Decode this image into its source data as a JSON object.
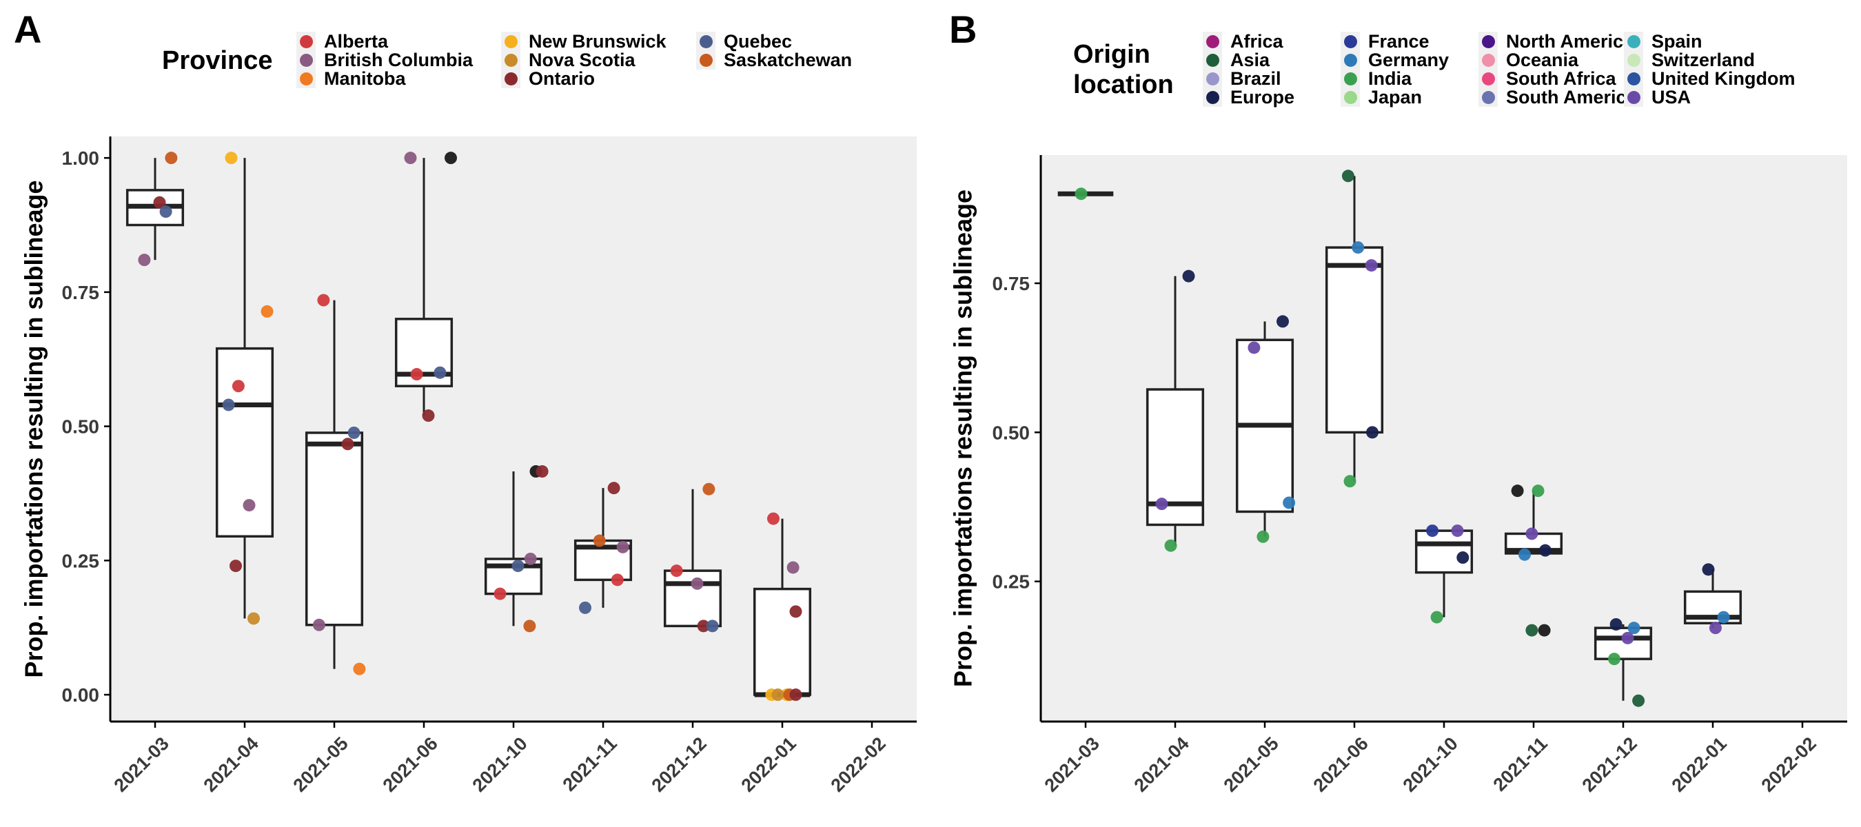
{
  "panels": [
    {
      "letter": "A",
      "legend": {
        "title": "Province",
        "items": [
          {
            "label": "Alberta",
            "color": "#d03a3e"
          },
          {
            "label": "British Columbia",
            "color": "#8a5a82"
          },
          {
            "label": "Manitoba",
            "color": "#f07a20"
          },
          {
            "label": "New Brunswick",
            "color": "#f5b01e"
          },
          {
            "label": "Nova Scotia",
            "color": "#c98a2a"
          },
          {
            "label": "Ontario",
            "color": "#8a2a2e"
          },
          {
            "label": "Quebec",
            "color": "#4a5e8e"
          },
          {
            "label": "Saskatchewan",
            "color": "#c85a1e"
          }
        ]
      },
      "chart_data": {
        "type": "boxplot",
        "ylabel": "Prop. importations resulting in sublineage",
        "categories": [
          "2021-03",
          "2021-04",
          "2021-05",
          "2021-06",
          "2021-10",
          "2021-11",
          "2021-12",
          "2022-01",
          "2022-02"
        ],
        "ylim": [
          -0.05,
          1.04
        ],
        "yticks": [
          "0.00",
          "0.25",
          "0.50",
          "0.75",
          "1.00"
        ],
        "grid": false,
        "boxes": [
          {
            "category": "2021-03",
            "q1": 0.875,
            "median": 0.91,
            "q3": 0.94,
            "lower": 0.81,
            "upper": 1.0
          },
          {
            "category": "2021-04",
            "q1": 0.295,
            "median": 0.54,
            "q3": 0.645,
            "lower": 0.142,
            "upper": 1.0
          },
          {
            "category": "2021-05",
            "q1": 0.13,
            "median": 0.467,
            "q3": 0.488,
            "lower": 0.048,
            "upper": 0.735
          },
          {
            "category": "2021-06",
            "q1": 0.575,
            "median": 0.597,
            "q3": 0.7,
            "lower": 0.52,
            "upper": 1.0
          },
          {
            "category": "2021-10",
            "q1": 0.188,
            "median": 0.24,
            "q3": 0.253,
            "lower": 0.128,
            "upper": 0.416
          },
          {
            "category": "2021-11",
            "q1": 0.214,
            "median": 0.275,
            "q3": 0.287,
            "lower": 0.162,
            "upper": 0.385
          },
          {
            "category": "2021-12",
            "q1": 0.128,
            "median": 0.207,
            "q3": 0.231,
            "lower": 0.128,
            "upper": 0.383
          },
          {
            "category": "2022-01",
            "q1": 0.0,
            "median": 0.0,
            "q3": 0.197,
            "lower": 0.0,
            "upper": 0.328
          }
        ],
        "points": [
          {
            "x": "2021-03",
            "y": 0.81,
            "group": "British Columbia"
          },
          {
            "x": "2021-03",
            "y": 0.917,
            "group": "Ontario"
          },
          {
            "x": "2021-03",
            "y": 0.9,
            "group": "Quebec"
          },
          {
            "x": "2021-03",
            "y": 1.0,
            "group": "Saskatchewan"
          },
          {
            "x": "2021-04",
            "y": 1.0,
            "group": "New Brunswick"
          },
          {
            "x": "2021-04",
            "y": 0.714,
            "group": "Manitoba"
          },
          {
            "x": "2021-04",
            "y": 0.575,
            "group": "Alberta"
          },
          {
            "x": "2021-04",
            "y": 0.54,
            "group": "Quebec"
          },
          {
            "x": "2021-04",
            "y": 0.353,
            "group": "British Columbia"
          },
          {
            "x": "2021-04",
            "y": 0.24,
            "group": "Ontario"
          },
          {
            "x": "2021-04",
            "y": 0.142,
            "group": "Nova Scotia"
          },
          {
            "x": "2021-05",
            "y": 0.735,
            "group": "Alberta"
          },
          {
            "x": "2021-05",
            "y": 0.488,
            "group": "Quebec"
          },
          {
            "x": "2021-05",
            "y": 0.467,
            "group": "Ontario"
          },
          {
            "x": "2021-05",
            "y": 0.13,
            "group": "British Columbia"
          },
          {
            "x": "2021-05",
            "y": 0.048,
            "group": "Manitoba"
          },
          {
            "x": "2021-06",
            "y": 1.0,
            "group": "British Columbia"
          },
          {
            "x": "2021-06",
            "y": 1.0
          },
          {
            "x": "2021-06",
            "y": 0.597,
            "group": "Alberta"
          },
          {
            "x": "2021-06",
            "y": 0.6,
            "group": "Quebec"
          },
          {
            "x": "2021-06",
            "y": 0.52,
            "group": "Ontario"
          },
          {
            "x": "2021-10",
            "y": 0.416
          },
          {
            "x": "2021-10",
            "y": 0.416,
            "group": "Ontario"
          },
          {
            "x": "2021-10",
            "y": 0.253,
            "group": "British Columbia"
          },
          {
            "x": "2021-10",
            "y": 0.24,
            "group": "Quebec"
          },
          {
            "x": "2021-10",
            "y": 0.188,
            "group": "Alberta"
          },
          {
            "x": "2021-10",
            "y": 0.128,
            "group": "Saskatchewan"
          },
          {
            "x": "2021-11",
            "y": 0.385,
            "group": "Ontario"
          },
          {
            "x": "2021-11",
            "y": 0.287,
            "group": "Saskatchewan"
          },
          {
            "x": "2021-11",
            "y": 0.275,
            "group": "British Columbia"
          },
          {
            "x": "2021-11",
            "y": 0.214,
            "group": "Alberta"
          },
          {
            "x": "2021-11",
            "y": 0.162,
            "group": "Quebec"
          },
          {
            "x": "2021-12",
            "y": 0.383,
            "group": "Saskatchewan"
          },
          {
            "x": "2021-12",
            "y": 0.231,
            "group": "Alberta"
          },
          {
            "x": "2021-12",
            "y": 0.207,
            "group": "British Columbia"
          },
          {
            "x": "2021-12",
            "y": 0.128,
            "group": "Ontario"
          },
          {
            "x": "2021-12",
            "y": 0.128,
            "group": "Quebec"
          },
          {
            "x": "2022-01",
            "y": 0.328,
            "group": "Alberta"
          },
          {
            "x": "2022-01",
            "y": 0.237,
            "group": "British Columbia"
          },
          {
            "x": "2022-01",
            "y": 0.155,
            "group": "Ontario"
          },
          {
            "x": "2022-01",
            "y": 0.0,
            "group": "New Brunswick"
          },
          {
            "x": "2022-01",
            "y": 0.0,
            "group": "New Brunswick"
          },
          {
            "x": "2022-01",
            "y": 0.0,
            "group": "Nova Scotia"
          },
          {
            "x": "2022-01",
            "y": 0.0,
            "group": "Saskatchewan"
          },
          {
            "x": "2022-01",
            "y": 0.0,
            "group": "Ontario"
          }
        ]
      }
    },
    {
      "letter": "B",
      "legend": {
        "title": "Origin\nlocation",
        "items": [
          {
            "label": "Africa",
            "color": "#a01c7a"
          },
          {
            "label": "Asia",
            "color": "#1e5e3a"
          },
          {
            "label": "Brazil",
            "color": "#9a96cc"
          },
          {
            "label": "Europe",
            "color": "#16204e"
          },
          {
            "label": "France",
            "color": "#2a3a96"
          },
          {
            "label": "Germany",
            "color": "#2e7ab8"
          },
          {
            "label": "India",
            "color": "#3aa050"
          },
          {
            "label": "Japan",
            "color": "#9ad88a"
          },
          {
            "label": "North America",
            "color": "#4a148a"
          },
          {
            "label": "Oceania",
            "color": "#f090a8"
          },
          {
            "label": "South Africa",
            "color": "#e8487e"
          },
          {
            "label": "South America",
            "color": "#6a72b0"
          },
          {
            "label": "Spain",
            "color": "#3ab0bc"
          },
          {
            "label": "Switzerland",
            "color": "#c8e8b8"
          },
          {
            "label": "United Kingdom",
            "color": "#2a54a0"
          },
          {
            "label": "USA",
            "color": "#6a4aa8"
          }
        ]
      },
      "chart_data": {
        "type": "boxplot",
        "ylabel": "Prop. importations resulting in sublineage",
        "categories": [
          "2021-03",
          "2021-04",
          "2021-05",
          "2021-06",
          "2021-10",
          "2021-11",
          "2021-12",
          "2022-01",
          "2022-02"
        ],
        "ylim": [
          0.015,
          0.965
        ],
        "yticks": [
          "0.25",
          "0.50",
          "0.75"
        ],
        "grid": false,
        "boxes": [
          {
            "category": "2021-03",
            "q1": 0.9,
            "median": 0.9,
            "q3": 0.9,
            "lower": 0.9,
            "upper": 0.9
          },
          {
            "category": "2021-04",
            "q1": 0.345,
            "median": 0.38,
            "q3": 0.572,
            "lower": 0.31,
            "upper": 0.762
          },
          {
            "category": "2021-05",
            "q1": 0.367,
            "median": 0.512,
            "q3": 0.655,
            "lower": 0.325,
            "upper": 0.686
          },
          {
            "category": "2021-06",
            "q1": 0.5,
            "median": 0.78,
            "q3": 0.81,
            "lower": 0.418,
            "upper": 0.93
          },
          {
            "category": "2021-10",
            "q1": 0.265,
            "median": 0.313,
            "q3": 0.335,
            "lower": 0.19,
            "upper": 0.335
          },
          {
            "category": "2021-11",
            "q1": 0.297,
            "median": 0.302,
            "q3": 0.33,
            "lower": 0.297,
            "upper": 0.402
          },
          {
            "category": "2021-12",
            "q1": 0.12,
            "median": 0.155,
            "q3": 0.172,
            "lower": 0.05,
            "upper": 0.178
          },
          {
            "category": "2022-01",
            "q1": 0.18,
            "median": 0.19,
            "q3": 0.233,
            "lower": 0.172,
            "upper": 0.27
          }
        ],
        "points": [
          {
            "x": "2021-03",
            "y": 0.9,
            "group": "India"
          },
          {
            "x": "2021-04",
            "y": 0.762,
            "group": "Europe"
          },
          {
            "x": "2021-04",
            "y": 0.38,
            "group": "USA"
          },
          {
            "x": "2021-04",
            "y": 0.31,
            "group": "India"
          },
          {
            "x": "2021-05",
            "y": 0.686,
            "group": "Europe"
          },
          {
            "x": "2021-05",
            "y": 0.642,
            "group": "USA"
          },
          {
            "x": "2021-05",
            "y": 0.382,
            "group": "Germany"
          },
          {
            "x": "2021-05",
            "y": 0.325,
            "group": "India"
          },
          {
            "x": "2021-06",
            "y": 0.93,
            "group": "Asia"
          },
          {
            "x": "2021-06",
            "y": 0.81,
            "group": "Germany"
          },
          {
            "x": "2021-06",
            "y": 0.78,
            "group": "USA"
          },
          {
            "x": "2021-06",
            "y": 0.5,
            "group": "Europe"
          },
          {
            "x": "2021-06",
            "y": 0.418,
            "group": "India"
          },
          {
            "x": "2021-10",
            "y": 0.335,
            "group": "France"
          },
          {
            "x": "2021-10",
            "y": 0.335,
            "group": "USA"
          },
          {
            "x": "2021-10",
            "y": 0.29,
            "group": "Europe"
          },
          {
            "x": "2021-10",
            "y": 0.19,
            "group": "India"
          },
          {
            "x": "2021-11",
            "y": 0.402
          },
          {
            "x": "2021-11",
            "y": 0.402,
            "group": "India"
          },
          {
            "x": "2021-11",
            "y": 0.33,
            "group": "USA"
          },
          {
            "x": "2021-11",
            "y": 0.302,
            "group": "Europe"
          },
          {
            "x": "2021-11",
            "y": 0.295,
            "group": "Germany"
          },
          {
            "x": "2021-11",
            "y": 0.168,
            "group": "Asia"
          },
          {
            "x": "2021-11",
            "y": 0.168
          },
          {
            "x": "2021-12",
            "y": 0.178,
            "group": "Europe"
          },
          {
            "x": "2021-12",
            "y": 0.172,
            "group": "Germany"
          },
          {
            "x": "2021-12",
            "y": 0.155,
            "group": "USA"
          },
          {
            "x": "2021-12",
            "y": 0.12,
            "group": "India"
          },
          {
            "x": "2021-12",
            "y": 0.05,
            "group": "Asia"
          },
          {
            "x": "2022-01",
            "y": 0.27,
            "group": "Europe"
          },
          {
            "x": "2022-01",
            "y": 0.19,
            "group": "Germany"
          },
          {
            "x": "2022-01",
            "y": 0.172,
            "group": "USA"
          }
        ]
      }
    }
  ]
}
